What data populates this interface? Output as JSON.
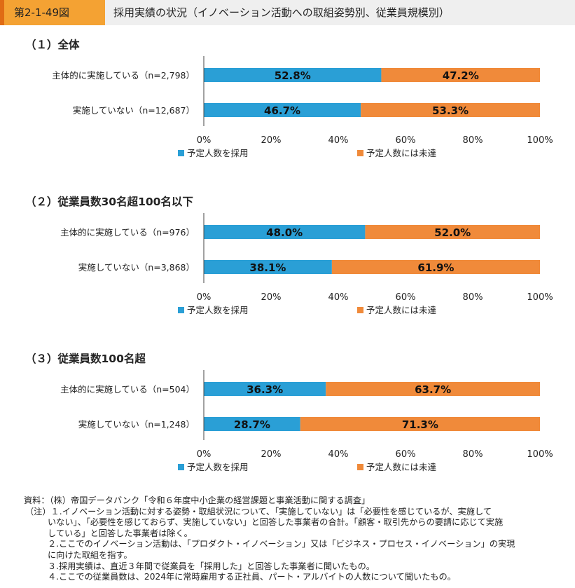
{
  "header": {
    "figure_number": "第2-1-49図",
    "title": "採用実績の状況（イノベーション活動への取組姿勢別、従業員規模別）"
  },
  "colors": {
    "adopted": "#2a9fd6",
    "not_reached": "#f08a3a",
    "axis": "#444444"
  },
  "chart_data": [
    {
      "type": "bar",
      "orientation": "horizontal",
      "stacked": true,
      "title": "（１）全体",
      "categories": [
        "主体的に実施している（n=2,798）",
        "実施していない（n=12,687）"
      ],
      "series": [
        {
          "name": "予定人数を採用",
          "values": [
            52.8,
            46.7
          ],
          "labels": [
            "52.8%",
            "46.7%"
          ]
        },
        {
          "name": "予定人数には未達",
          "values": [
            47.2,
            53.3
          ],
          "labels": [
            "47.2%",
            "53.3%"
          ]
        }
      ],
      "xlim": [
        0,
        100
      ],
      "x_ticks": [
        "0%",
        "20%",
        "40%",
        "60%",
        "80%",
        "100%"
      ],
      "legend_position": "bottom"
    },
    {
      "type": "bar",
      "orientation": "horizontal",
      "stacked": true,
      "title": "（２）従業員数30名超100名以下",
      "categories": [
        "主体的に実施している（n=976）",
        "実施していない（n=3,868）"
      ],
      "series": [
        {
          "name": "予定人数を採用",
          "values": [
            48.0,
            38.1
          ],
          "labels": [
            "48.0%",
            "38.1%"
          ]
        },
        {
          "name": "予定人数には未達",
          "values": [
            52.0,
            61.9
          ],
          "labels": [
            "52.0%",
            "61.9%"
          ]
        }
      ],
      "xlim": [
        0,
        100
      ],
      "x_ticks": [
        "0%",
        "20%",
        "40%",
        "60%",
        "80%",
        "100%"
      ],
      "legend_position": "bottom"
    },
    {
      "type": "bar",
      "orientation": "horizontal",
      "stacked": true,
      "title": "（３）従業員数100名超",
      "categories": [
        "主体的に実施している（n=504）",
        "実施していない（n=1,248）"
      ],
      "series": [
        {
          "name": "予定人数を採用",
          "values": [
            36.3,
            28.7
          ],
          "labels": [
            "36.3%",
            "28.7%"
          ]
        },
        {
          "name": "予定人数には未達",
          "values": [
            63.7,
            71.3
          ],
          "labels": [
            "63.7%",
            "71.3%"
          ]
        }
      ],
      "xlim": [
        0,
        100
      ],
      "x_ticks": [
        "0%",
        "20%",
        "40%",
        "60%",
        "80%",
        "100%"
      ],
      "legend_position": "bottom"
    }
  ],
  "notes": [
    "資料：（株）帝国データバンク「令和６年度中小企業の経営課題と事業活動に関する調査」",
    "（注）１.イノベーション活動に対する姿勢・取組状況について、「実施していない」は「必要性を感じているが、実施して",
    "いない」、「必要性を感じておらず、実施していない」と回答した事業者の合計。「顧客・取引先からの要請に応じて実施",
    "している」と回答した事業者は除く。",
    "２.ここでのイノベーション活動は、「プロダクト・イノベーション」又は「ビジネス・プロセス・イノベーション」の実現",
    "に向けた取組を指す。",
    "３.採用実績は、直近３年間で従業員を「採用した」と回答した事業者に聞いたもの。",
    "４.ここでの従業員数は、2024年に常時雇用する正社員、パート・アルバイトの人数について聞いたもの。"
  ]
}
